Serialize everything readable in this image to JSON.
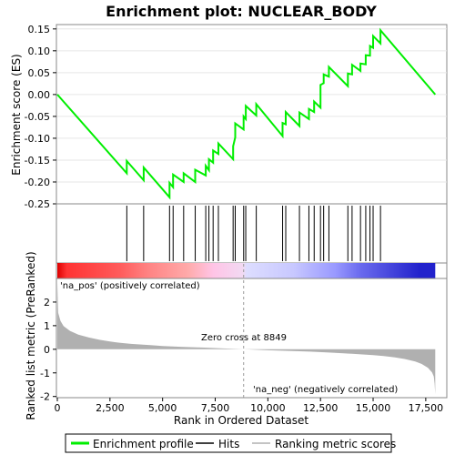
{
  "chart_data": [
    {
      "type": "line",
      "title": "Enrichment plot: NUCLEAR_BODY",
      "ylabel": "Enrichment score (ES)",
      "xlim": [
        0,
        18500
      ],
      "ylim": [
        -0.25,
        0.16
      ],
      "yticks": [
        -0.25,
        -0.2,
        -0.15,
        -0.1,
        -0.05,
        0.0,
        0.05,
        0.1,
        0.15
      ],
      "ytick_labels": [
        "-0.25",
        "-0.20",
        "-0.15",
        "-0.10",
        "-0.05",
        "0.00",
        "0.05",
        "0.10",
        "0.15"
      ],
      "grid": true,
      "color": "#00ee00",
      "series": [
        {
          "x": [
            0,
            3300,
            3300,
            4100,
            4100,
            5330,
            5330,
            5500,
            5500,
            6000,
            6000,
            6550,
            6550,
            7050,
            7050,
            7200,
            7200,
            7400,
            7400,
            7650,
            7650,
            8350,
            8350,
            8450,
            8450,
            8850,
            8850,
            8950,
            8950,
            9450,
            9450,
            10700,
            10700,
            10850,
            10850,
            11500,
            11500,
            11950,
            11950,
            12200,
            12200,
            12500,
            12500,
            12650,
            12650,
            12900,
            12900,
            13800,
            13800,
            14000,
            14000,
            14400,
            14400,
            14650,
            14650,
            14850,
            14850,
            15000,
            15000,
            15350,
            15350,
            17950
          ],
          "y": [
            0.0,
            -0.18,
            -0.152,
            -0.196,
            -0.167,
            -0.235,
            -0.202,
            -0.212,
            -0.183,
            -0.2,
            -0.18,
            -0.2,
            -0.172,
            -0.185,
            -0.163,
            -0.173,
            -0.148,
            -0.156,
            -0.128,
            -0.136,
            -0.112,
            -0.148,
            -0.118,
            -0.098,
            -0.066,
            -0.08,
            -0.05,
            -0.056,
            -0.026,
            -0.048,
            -0.022,
            -0.095,
            -0.065,
            -0.068,
            -0.04,
            -0.072,
            -0.041,
            -0.056,
            -0.033,
            -0.04,
            -0.016,
            -0.03,
            0.022,
            0.026,
            0.046,
            0.041,
            0.063,
            0.019,
            0.048,
            0.046,
            0.068,
            0.054,
            0.071,
            0.069,
            0.09,
            0.089,
            0.111,
            0.107,
            0.134,
            0.117,
            0.147,
            0.0
          ]
        }
      ]
    },
    {
      "type": "scatter",
      "series_name": "Hits",
      "x": [
        3300,
        4100,
        5330,
        5500,
        6000,
        6550,
        7050,
        7200,
        7400,
        7650,
        8350,
        8450,
        8850,
        8950,
        9450,
        10700,
        10850,
        11500,
        11950,
        12200,
        12500,
        12650,
        12900,
        13800,
        14000,
        14400,
        14650,
        14850,
        15000,
        15350
      ]
    },
    {
      "type": "heatmap",
      "description_source": "color bar",
      "stops": [
        {
          "x": 0,
          "color": "#dd0000"
        },
        {
          "x": 450,
          "color": "#ff3333"
        },
        {
          "x": 3000,
          "color": "#ff5c5c"
        },
        {
          "x": 4200,
          "color": "#ff8080"
        },
        {
          "x": 6200,
          "color": "#ffaaaa"
        },
        {
          "x": 7400,
          "color": "#ffc4e6"
        },
        {
          "x": 8800,
          "color": "#f2d9f2"
        },
        {
          "x": 9000,
          "color": "#ddddff"
        },
        {
          "x": 11200,
          "color": "#c8c8ff"
        },
        {
          "x": 13200,
          "color": "#9999ff"
        },
        {
          "x": 14400,
          "color": "#6a6aee"
        },
        {
          "x": 17200,
          "color": "#2222cc"
        },
        {
          "x": 17950,
          "color": "#2222cc"
        }
      ],
      "label_pos": "'na_pos' (positively correlated)",
      "label_neg": "'na_neg' (negatively correlated)",
      "pos_color": "#cc0000",
      "neg_color": "#0000cc"
    },
    {
      "type": "area",
      "xlabel": "Rank in Ordered Dataset",
      "ylabel": "Ranked list metric (PreRanked)",
      "xlim": [
        0,
        18500
      ],
      "ylim": [
        -2.05,
        3.0
      ],
      "yticks": [
        -2,
        -1,
        0,
        1,
        2
      ],
      "ytick_labels": [
        "-2",
        "-1",
        "0",
        "1",
        "2"
      ],
      "xticks": [
        0,
        2500,
        5000,
        7500,
        10000,
        12500,
        15000,
        17500
      ],
      "xtick_labels": [
        "0",
        "2,500",
        "5,000",
        "7,500",
        "10,000",
        "12,500",
        "15,000",
        "17,500"
      ],
      "zero_cross_label": "Zero cross at 8849",
      "zero_cross": 8849,
      "color": "#b0b0b0",
      "series": [
        {
          "x": [
            0,
            40,
            150,
            300,
            600,
            1000,
            1500,
            2000,
            2500,
            3000,
            3500,
            4000,
            4500,
            5000,
            5500,
            6000,
            7000,
            8000,
            8849,
            10000,
            11000,
            12000,
            13000,
            14000,
            15000,
            15500,
            16000,
            16500,
            17000,
            17300,
            17600,
            17800,
            17880,
            17920,
            17950
          ],
          "y": [
            2.8,
            1.55,
            1.2,
            0.98,
            0.78,
            0.62,
            0.5,
            0.4,
            0.33,
            0.27,
            0.23,
            0.2,
            0.17,
            0.14,
            0.12,
            0.1,
            0.07,
            0.03,
            0.0,
            -0.04,
            -0.07,
            -0.1,
            -0.14,
            -0.19,
            -0.25,
            -0.29,
            -0.34,
            -0.41,
            -0.52,
            -0.62,
            -0.78,
            -0.98,
            -1.15,
            -1.45,
            -1.9
          ]
        }
      ]
    }
  ],
  "legend": {
    "items": [
      {
        "label": "Enrichment profile",
        "color": "#00ee00",
        "icon": "green-line-icon"
      },
      {
        "label": "Hits",
        "color": "#000000",
        "icon": "black-line-icon"
      },
      {
        "label": "Ranking metric scores",
        "color": "#b0b0b0",
        "icon": "gray-line-icon"
      }
    ]
  }
}
